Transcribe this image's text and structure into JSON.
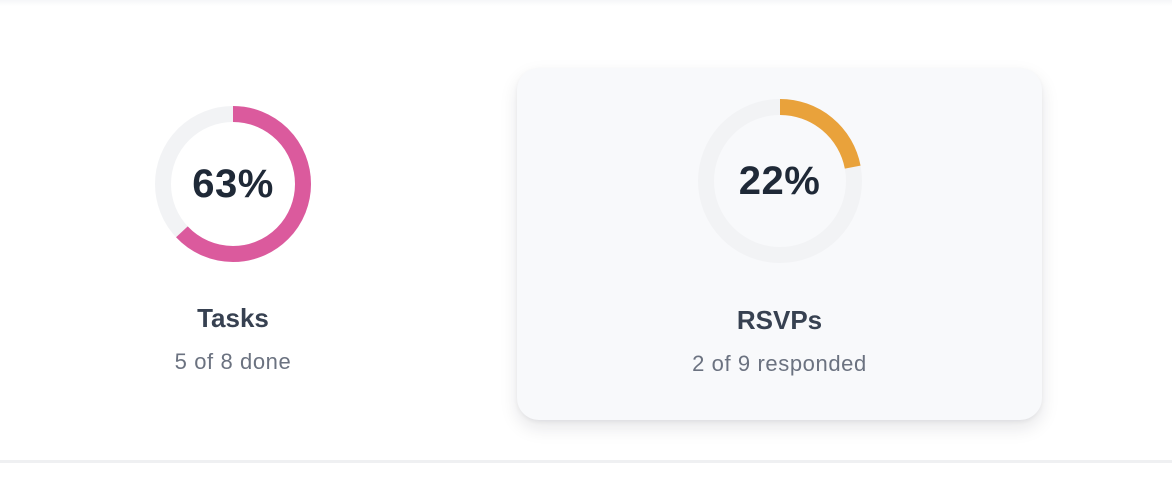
{
  "colors": {
    "tasks_accent": "#db5a9d",
    "rsvps_accent": "#e9a23b",
    "track": "#f2f3f5"
  },
  "stats": [
    {
      "key": "tasks",
      "percent_label": "63%",
      "progress": 0.63,
      "title": "Tasks",
      "subtitle": "5 of 8 done"
    },
    {
      "key": "rsvps",
      "percent_label": "22%",
      "progress": 0.22,
      "title": "RSVPs",
      "subtitle": "2 of 9 responded"
    }
  ]
}
